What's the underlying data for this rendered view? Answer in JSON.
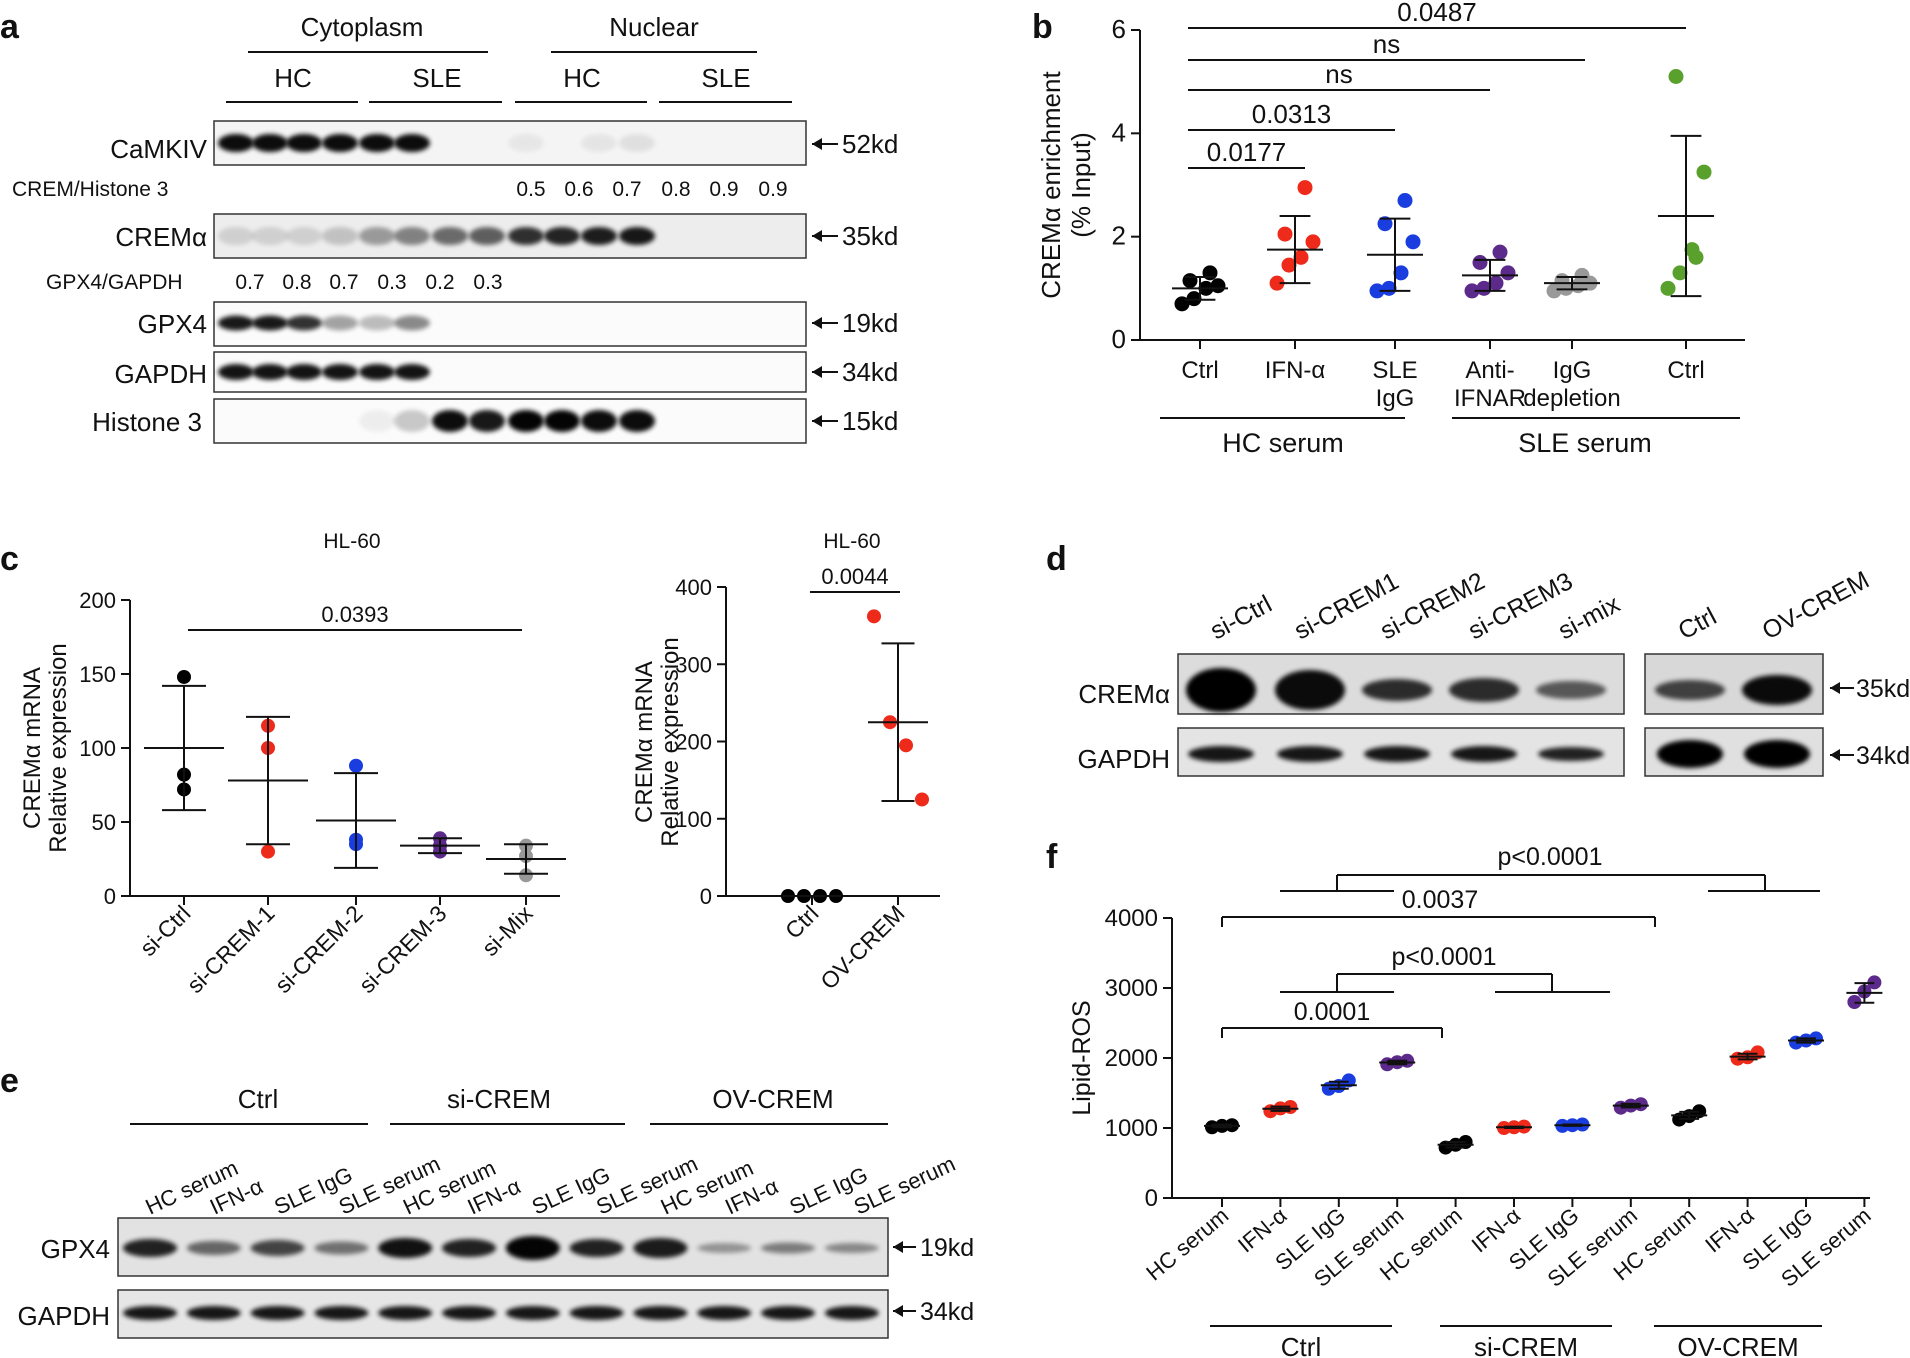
{
  "panel_letters": [
    "a",
    "b",
    "c",
    "d",
    "e",
    "f"
  ],
  "panel_a": {
    "groups": [
      "Cytoplasm",
      "Nuclear"
    ],
    "subgroups": [
      "HC",
      "SLE",
      "HC",
      "SLE"
    ],
    "rows": [
      "CaMKIV",
      "CREMα",
      "GPX4",
      "GAPDH",
      "Histone 3"
    ],
    "sizes": [
      "52kd",
      "35kd",
      "19kd",
      "34kd",
      "15kd"
    ],
    "crem_label": "CREM/Histone 3",
    "crem_values": [
      "0.5",
      "0.6",
      "0.7",
      "0.8",
      "0.9",
      "0.9"
    ],
    "gpx4_label": "GPX4/GAPDH",
    "gpx4_values": [
      "0.7",
      "0.8",
      "0.7",
      "0.3",
      "0.2",
      "0.3"
    ]
  },
  "panel_d": {
    "lanes": [
      "si-Ctrl",
      "si-CREM1",
      "si-CREM2",
      "si-CREM3",
      "si-mix",
      "Ctrl",
      "OV-CREM"
    ],
    "rows": [
      "CREMα",
      "GAPDH"
    ],
    "sizes": [
      "35kd",
      "34kd"
    ]
  },
  "panel_e": {
    "groups": [
      "Ctrl",
      "si-CREM",
      "OV-CREM"
    ],
    "lanes": [
      "HC serum",
      "IFN-α",
      "SLE IgG",
      "SLE serum",
      "HC serum",
      "IFN-α",
      "SLE IgG",
      "SLE serum",
      "HC serum",
      "IFN-α",
      "SLE IgG",
      "SLE serum"
    ],
    "rows": [
      "GPX4",
      "GAPDH"
    ],
    "sizes": [
      "19kd",
      "34kd"
    ]
  },
  "chart_data": [
    {
      "id": "b",
      "type": "scatter",
      "ylabel": "CREMα enrichment (% Input)",
      "ylim": [
        0,
        6
      ],
      "yticks": [
        "0",
        "2",
        "4",
        "6"
      ],
      "categories": [
        "Ctrl",
        "IFN-α",
        "SLE IgG",
        "Anti-IFNAR",
        "IgG depletion",
        "Ctrl"
      ],
      "groups": [
        "HC serum",
        "SLE serum"
      ],
      "colors": [
        "#000000",
        "#ee2a1b",
        "#1a3de0",
        "#5b2a8a",
        "#999999",
        "#5aa02c"
      ],
      "series": [
        {
          "values": [
            0.7,
            0.8,
            1.0,
            1.05,
            1.15,
            1.3
          ],
          "mean": 1.0,
          "sd": 0.22
        },
        {
          "values": [
            1.1,
            1.45,
            1.6,
            1.9,
            2.05,
            2.95
          ],
          "mean": 1.75,
          "sd": 0.65
        },
        {
          "values": [
            0.95,
            1.0,
            1.3,
            1.9,
            2.25,
            2.7
          ],
          "mean": 1.65,
          "sd": 0.7
        },
        {
          "values": [
            0.95,
            1.0,
            1.1,
            1.3,
            1.5,
            1.7
          ],
          "mean": 1.25,
          "sd": 0.3
        },
        {
          "values": [
            0.95,
            1.0,
            1.05,
            1.1,
            1.15,
            1.25
          ],
          "mean": 1.1,
          "sd": 0.12
        },
        {
          "values": [
            1.0,
            1.3,
            1.75,
            3.25,
            5.1,
            1.6
          ],
          "mean": 2.4,
          "sd": 1.55
        }
      ],
      "comparisons": [
        "0.0487",
        "ns",
        "ns",
        "0.0313",
        "0.0177"
      ]
    },
    {
      "id": "c-left",
      "type": "scatter",
      "title": "HL-60",
      "ylabel": "CREMα mRNA Relative expression",
      "ylim": [
        0,
        200
      ],
      "yticks": [
        "0",
        "50",
        "100",
        "150",
        "200"
      ],
      "categories": [
        "si-Ctrl",
        "si-CREM-1",
        "si-CREM-2",
        "si-CREM-3",
        "si-Mix"
      ],
      "colors": [
        "#000000",
        "#ee2a1b",
        "#1a3de0",
        "#5b2a8a",
        "#999999"
      ],
      "series": [
        {
          "values": [
            148,
            82,
            72
          ],
          "mean": 100,
          "sd": 42
        },
        {
          "values": [
            115,
            100,
            30
          ],
          "mean": 78,
          "sd": 43
        },
        {
          "values": [
            88,
            38,
            35
          ],
          "mean": 51,
          "sd": 32
        },
        {
          "values": [
            39,
            34,
            30
          ],
          "mean": 34,
          "sd": 5
        },
        {
          "values": [
            34,
            27,
            14
          ],
          "mean": 25,
          "sd": 10
        }
      ],
      "comparisons": [
        "0.0393"
      ]
    },
    {
      "id": "c-right",
      "type": "scatter",
      "title": "HL-60",
      "ylabel": "CREMα mRNA Relative expression",
      "ylim": [
        0,
        400
      ],
      "yticks": [
        "0",
        "100",
        "200",
        "300",
        "400"
      ],
      "categories": [
        "Ctrl",
        "OV-CREM"
      ],
      "colors": [
        "#000000",
        "#ee2a1b"
      ],
      "series": [
        {
          "values": [
            0,
            0,
            0,
            0
          ],
          "mean": 0,
          "sd": 0
        },
        {
          "values": [
            362,
            225,
            195,
            125
          ],
          "mean": 225,
          "sd": 102
        }
      ],
      "comparisons": [
        "0.0044"
      ]
    },
    {
      "id": "f",
      "type": "scatter",
      "ylabel": "Lipid-ROS",
      "ylim": [
        0,
        4000
      ],
      "yticks": [
        "0",
        "1000",
        "2000",
        "3000",
        "4000"
      ],
      "categories": [
        "HC serum",
        "IFN-α",
        "SLE IgG",
        "SLE serum",
        "HC serum",
        "IFN-α",
        "SLE IgG",
        "SLE serum",
        "HC serum",
        "IFN-α",
        "SLE IgG",
        "SLE serum"
      ],
      "groups": [
        "Ctrl",
        "si-CREM",
        "OV-CREM"
      ],
      "colors": [
        "#000000",
        "#ee2a1b",
        "#1a3de0",
        "#5b2a8a",
        "#000000",
        "#ee2a1b",
        "#1a3de0",
        "#5b2a8a",
        "#000000",
        "#ee2a1b",
        "#1a3de0",
        "#5b2a8a"
      ],
      "series": [
        {
          "values": [
            1010,
            1030,
            1040
          ],
          "mean": 1030,
          "sd": 20
        },
        {
          "values": [
            1240,
            1280,
            1300
          ],
          "mean": 1275,
          "sd": 30
        },
        {
          "values": [
            1560,
            1600,
            1680
          ],
          "mean": 1610,
          "sd": 50
        },
        {
          "values": [
            1910,
            1940,
            1960
          ],
          "mean": 1935,
          "sd": 25
        },
        {
          "values": [
            720,
            760,
            800
          ],
          "mean": 760,
          "sd": 40
        },
        {
          "values": [
            1000,
            1010,
            1020
          ],
          "mean": 1010,
          "sd": 10
        },
        {
          "values": [
            1030,
            1040,
            1050
          ],
          "mean": 1040,
          "sd": 10
        },
        {
          "values": [
            1290,
            1320,
            1340
          ],
          "mean": 1320,
          "sd": 25
        },
        {
          "values": [
            1120,
            1170,
            1240
          ],
          "mean": 1180,
          "sd": 50
        },
        {
          "values": [
            1990,
            2010,
            2080
          ],
          "mean": 2020,
          "sd": 40
        },
        {
          "values": [
            2220,
            2250,
            2280
          ],
          "mean": 2250,
          "sd": 30
        },
        {
          "values": [
            2800,
            2950,
            3080
          ],
          "mean": 2930,
          "sd": 140
        }
      ],
      "comparisons": [
        "p<0.0001",
        "0.0037",
        "p<0.0001",
        "0.0001"
      ]
    }
  ]
}
